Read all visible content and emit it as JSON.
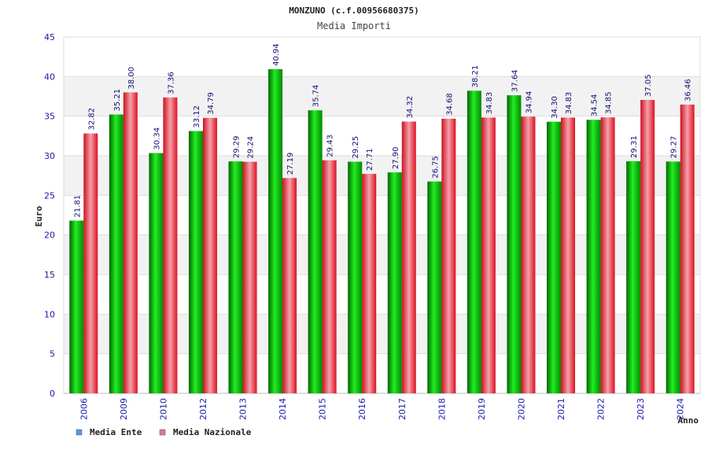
{
  "chart_data": {
    "type": "bar",
    "title": "MONZUNO (c.f.00956680375)",
    "subtitle": "Media Importi",
    "xlabel": "Anno",
    "ylabel": "Euro",
    "ylim": [
      0,
      45
    ],
    "yticks": [
      0,
      5,
      10,
      15,
      20,
      25,
      30,
      35,
      40,
      45
    ],
    "grid": true,
    "legend_position": "bottom-left",
    "categories": [
      "2006",
      "2009",
      "2010",
      "2012",
      "2013",
      "2014",
      "2015",
      "2016",
      "2017",
      "2018",
      "2019",
      "2020",
      "2021",
      "2022",
      "2023",
      "2024"
    ],
    "series": [
      {
        "name": "Media Ente",
        "color": "#11aa11",
        "legend_color": "#5599ee",
        "values": [
          21.81,
          35.21,
          30.34,
          33.12,
          29.29,
          40.94,
          35.74,
          29.25,
          27.9,
          26.75,
          38.21,
          37.64,
          34.3,
          34.54,
          29.31,
          29.27
        ],
        "labels": [
          "21.81",
          "35.21",
          "30.34",
          "33.12",
          "29.29",
          "40.94",
          "35.74",
          "29.25",
          "27.90",
          "26.75",
          "38.21",
          "37.64",
          "34.30",
          "34.54",
          "29.31",
          "29.27"
        ]
      },
      {
        "name": "Media Nazionale",
        "color": "#ee2233",
        "legend_color": "#dd7799",
        "values": [
          32.82,
          38.0,
          37.36,
          34.79,
          29.24,
          27.19,
          29.43,
          27.71,
          34.32,
          34.68,
          34.83,
          34.94,
          34.83,
          34.85,
          37.05,
          36.46
        ],
        "labels": [
          "32.82",
          "38.00",
          "37.36",
          "34.79",
          "29.24",
          "27.19",
          "29.43",
          "27.71",
          "34.32",
          "34.68",
          "34.83",
          "34.94",
          "34.83",
          "34.85",
          "37.05",
          "36.46"
        ]
      }
    ]
  }
}
